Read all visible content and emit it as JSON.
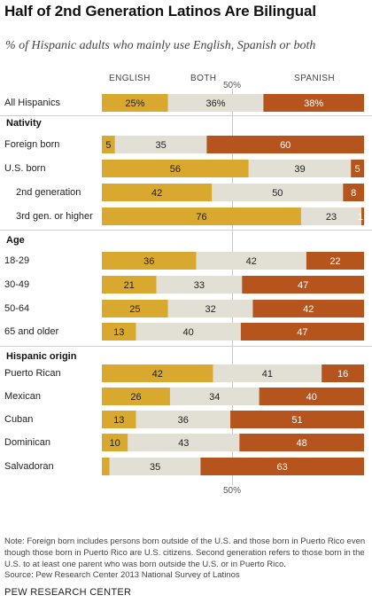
{
  "title": "Half of 2nd Generation Latinos Are Bilingual",
  "subtitle": "% of Hispanic adults who mainly use English, Spanish or both",
  "note": "Note: Foreign born includes persons born outside of the U.S. and those born in Puerto Rico even though those born in Puerto Rico are U.S. citizens. Second generation refers to those born in the U.S. to at least one parent who was born outside the U.S. or in Puerto Rico.",
  "source": "Source: Pew Research Center 2013 National Survey of Latinos",
  "brand": "PEW RESEARCH CENTER",
  "colors": {
    "english": "#D9A82E",
    "both": "#E2DFD4",
    "spanish": "#B5541C"
  },
  "chart_data": {
    "type": "bar",
    "orientation": "horizontal",
    "stacked": true,
    "series_labels": [
      "ENGLISH",
      "BOTH",
      "SPANISH"
    ],
    "midpoint_label": "50%",
    "overall": {
      "label": "All Hispanics",
      "values": [
        25,
        36,
        38
      ],
      "display": [
        "25%",
        "36%",
        "38%"
      ]
    },
    "groups": [
      {
        "name": "Nativity",
        "rows": [
          {
            "label": "Foreign born",
            "values": [
              5,
              35,
              60
            ]
          },
          {
            "label": "U.S. born",
            "values": [
              56,
              39,
              5
            ]
          },
          {
            "label": "2nd generation",
            "values": [
              42,
              50,
              8
            ],
            "indent": true
          },
          {
            "label": "3rd gen. or higher",
            "values": [
              76,
              23,
              1
            ],
            "indent": true
          }
        ]
      },
      {
        "name": "Age",
        "rows": [
          {
            "label": "18-29",
            "values": [
              36,
              42,
              22
            ]
          },
          {
            "label": "30-49",
            "values": [
              21,
              33,
              47
            ]
          },
          {
            "label": "50-64",
            "values": [
              25,
              32,
              42
            ]
          },
          {
            "label": "65 and older",
            "values": [
              13,
              40,
              47
            ]
          }
        ]
      },
      {
        "name": "Hispanic origin",
        "rows": [
          {
            "label": "Puerto Rican",
            "values": [
              42,
              41,
              16
            ]
          },
          {
            "label": "Mexican",
            "values": [
              26,
              34,
              40
            ]
          },
          {
            "label": "Cuban",
            "values": [
              13,
              36,
              51
            ]
          },
          {
            "label": "Dominican",
            "values": [
              10,
              43,
              48
            ]
          },
          {
            "label": "Salvadoran",
            "values": [
              3,
              35,
              63
            ]
          }
        ]
      }
    ]
  }
}
